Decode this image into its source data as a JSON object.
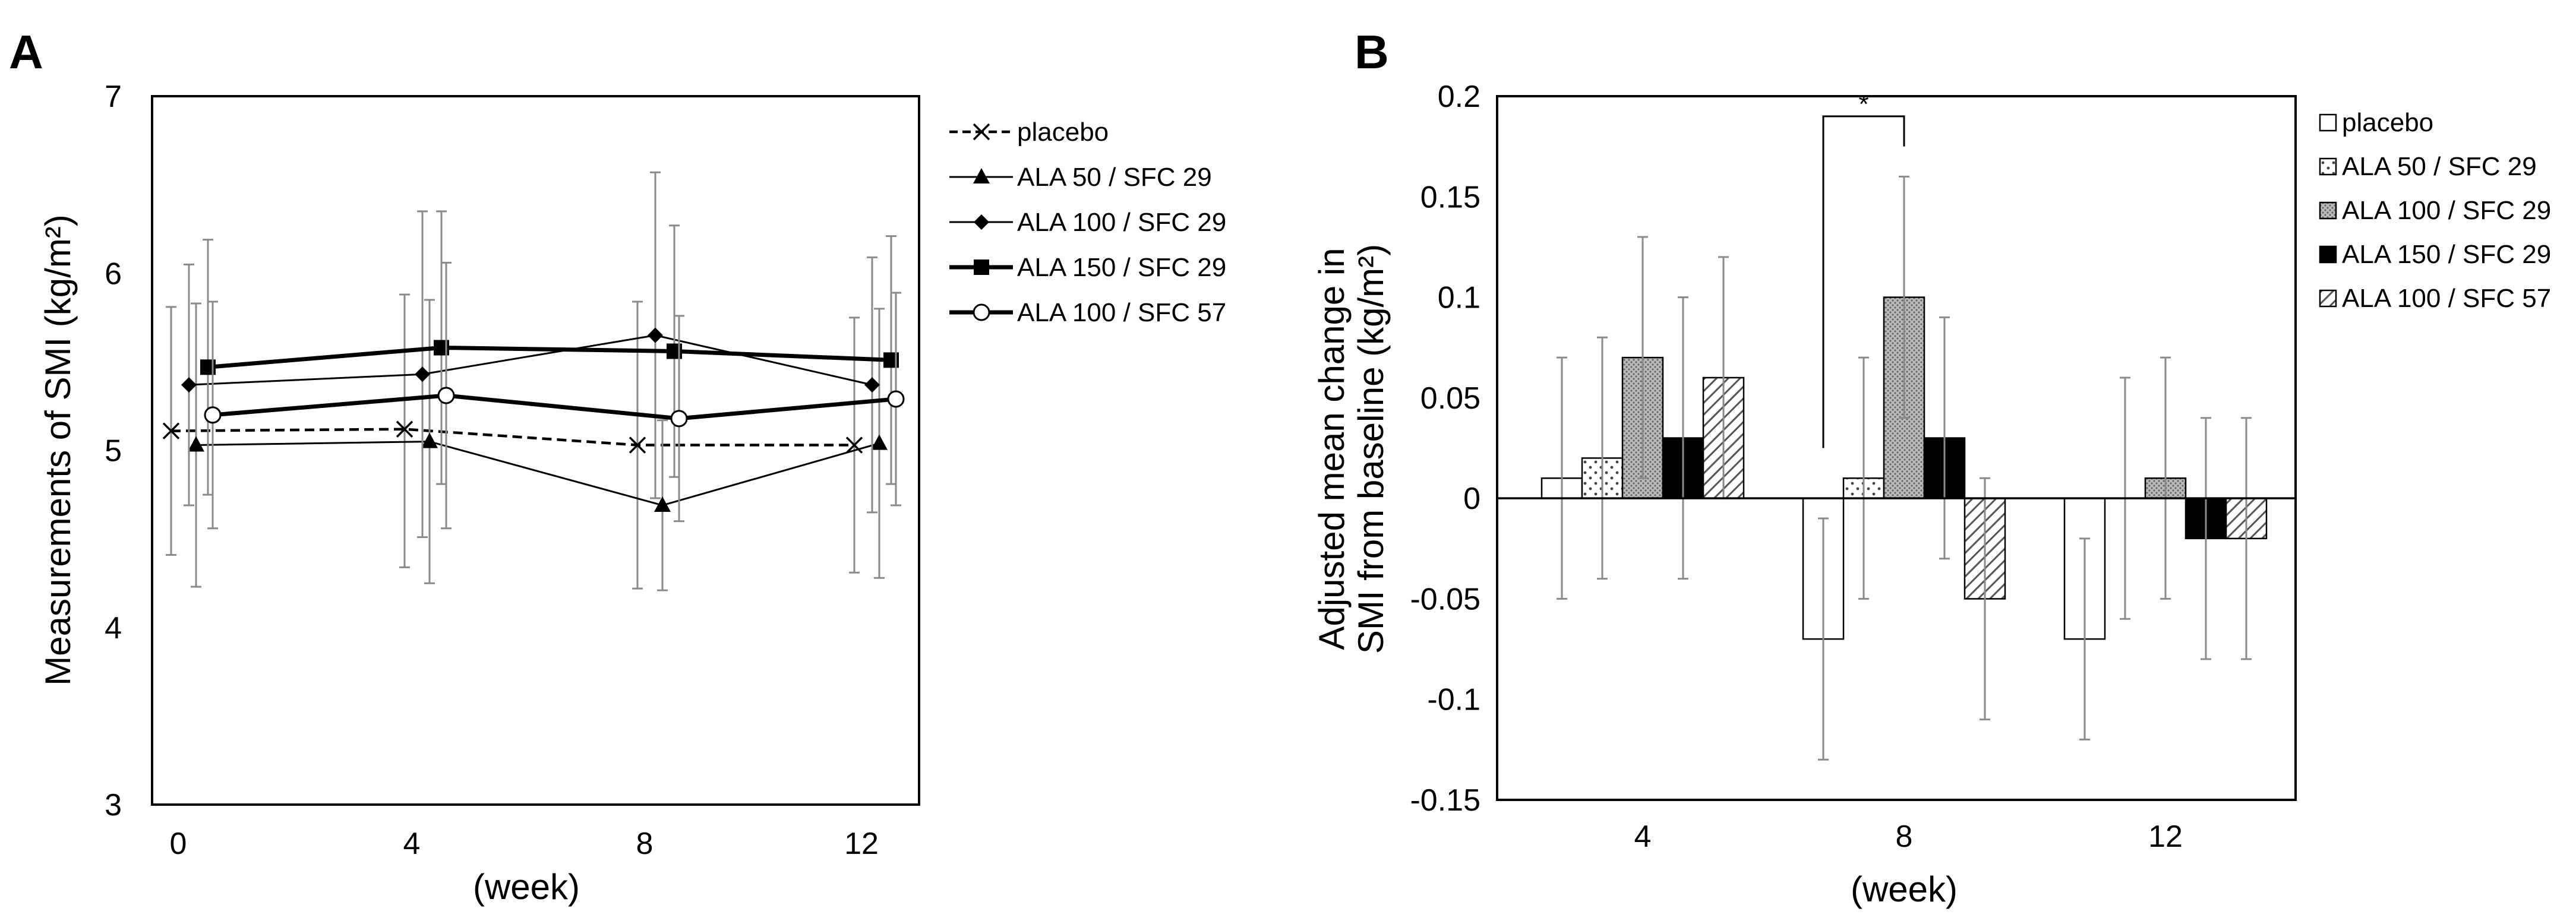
{
  "chart_data": [
    {
      "panel": "A",
      "type": "line",
      "xlabel": "(week)",
      "ylabel": "Measurements of SMI (kg/m²)",
      "x": [
        0,
        4,
        8,
        12
      ],
      "x_ticks": [
        "0",
        "4",
        "8",
        "12"
      ],
      "ylim": [
        3,
        7
      ],
      "y_ticks": [
        "3",
        "4",
        "5",
        "6",
        "7"
      ],
      "grid": false,
      "legend_position": "right",
      "series": [
        {
          "name": "placebo",
          "marker": "x",
          "line": "dashed",
          "values": [
            5.11,
            5.12,
            5.03,
            5.03
          ],
          "err_low": [
            4.41,
            4.34,
            4.22,
            4.31
          ],
          "err_high": [
            5.81,
            5.88,
            5.84,
            5.75
          ]
        },
        {
          "name": "ALA 50 / SFC 29",
          "marker": "triangle",
          "line": "thin",
          "values": [
            5.03,
            5.05,
            4.69,
            5.04
          ],
          "err_low": [
            4.23,
            4.25,
            4.21,
            4.28
          ],
          "err_high": [
            5.83,
            5.85,
            5.17,
            5.8
          ]
        },
        {
          "name": "ALA 100 / SFC 29",
          "marker": "diamond",
          "line": "thin",
          "values": [
            5.37,
            5.43,
            5.65,
            5.37
          ],
          "err_low": [
            4.69,
            4.51,
            4.73,
            4.65
          ],
          "err_high": [
            6.05,
            6.35,
            6.57,
            6.09
          ]
        },
        {
          "name": "ALA 150 / SFC 29",
          "marker": "square",
          "line": "thick",
          "values": [
            5.47,
            5.58,
            5.56,
            5.51
          ],
          "err_low": [
            4.75,
            4.81,
            4.85,
            4.81
          ],
          "err_high": [
            6.19,
            6.35,
            6.27,
            6.21
          ]
        },
        {
          "name": "ALA 100 / SFC 57",
          "marker": "circle-open",
          "line": "thick",
          "values": [
            5.2,
            5.31,
            5.18,
            5.29
          ],
          "err_low": [
            4.56,
            4.56,
            4.6,
            4.69
          ],
          "err_high": [
            5.84,
            6.06,
            5.76,
            5.89
          ]
        }
      ]
    },
    {
      "panel": "B",
      "type": "bar",
      "xlabel": "(week)",
      "ylabel_line1": "Adjusted mean change in",
      "ylabel_line2": "SMI from baseline (kg/m²)",
      "categories": [
        "4",
        "8",
        "12"
      ],
      "ylim": [
        -0.15,
        0.2
      ],
      "y_ticks": [
        "-0.15",
        "-0.1",
        "-0.05",
        "0",
        "0.05",
        "0.1",
        "0.15",
        "0.2"
      ],
      "grid": false,
      "legend_position": "right",
      "annotations": [
        {
          "text": "*",
          "between": [
            "placebo@8",
            "ALA 100 / SFC 29@8"
          ]
        }
      ],
      "series": [
        {
          "name": "placebo",
          "pattern": "white",
          "values": [
            0.01,
            -0.07,
            -0.07
          ],
          "err_low": [
            -0.05,
            -0.13,
            -0.12
          ],
          "err_high": [
            0.07,
            -0.01,
            -0.02
          ]
        },
        {
          "name": "ALA 50 / SFC 29",
          "pattern": "dots",
          "values": [
            0.02,
            0.01,
            null
          ],
          "err_low": [
            -0.04,
            -0.05,
            -0.06
          ],
          "err_high": [
            0.08,
            0.07,
            0.06
          ]
        },
        {
          "name": "ALA 100 / SFC 29",
          "pattern": "dense-dots",
          "values": [
            0.07,
            0.1,
            0.01
          ],
          "err_low": [
            0.01,
            0.04,
            -0.05
          ],
          "err_high": [
            0.13,
            0.16,
            0.07
          ]
        },
        {
          "name": "ALA 150 / SFC 29",
          "pattern": "black",
          "values": [
            0.03,
            0.03,
            -0.02
          ],
          "err_low": [
            -0.04,
            -0.03,
            -0.08
          ],
          "err_high": [
            0.1,
            0.09,
            0.04
          ]
        },
        {
          "name": "ALA 100 / SFC 57",
          "pattern": "diagonal",
          "values": [
            0.06,
            -0.05,
            -0.02
          ],
          "err_low": [
            0.0,
            -0.11,
            -0.08
          ],
          "err_high": [
            0.12,
            0.01,
            0.04
          ]
        }
      ]
    }
  ]
}
